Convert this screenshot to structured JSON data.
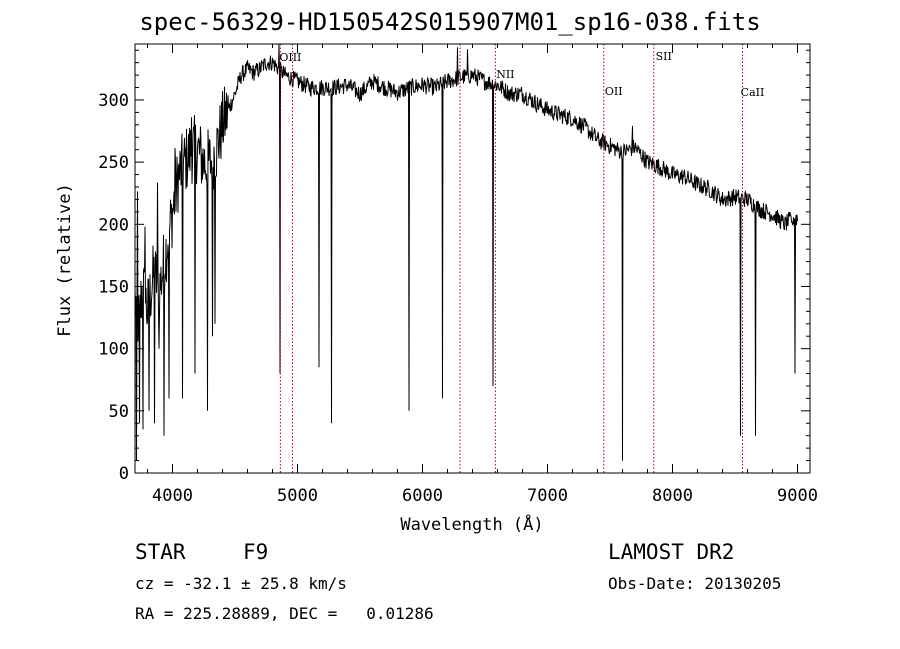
{
  "chart_data": {
    "type": "line",
    "title": "spec-56329-HD150542S015907M01_sp16-038.fits",
    "xlabel": "Wavelength (Å)",
    "ylabel": "Flux (relative)",
    "xlim": [
      3700,
      9100
    ],
    "ylim": [
      0,
      345
    ],
    "x_ticks": [
      4000,
      5000,
      6000,
      7000,
      8000,
      9000
    ],
    "x_tick_labels": [
      "4000",
      "5000",
      "6000",
      "7000",
      "8000",
      "9000"
    ],
    "y_ticks": [
      0,
      50,
      100,
      150,
      200,
      250,
      300
    ],
    "y_tick_labels": [
      "0",
      "50",
      "100",
      "150",
      "200",
      "250",
      "300"
    ],
    "grid": false,
    "series_color": "#000000",
    "line_marker_color": "#b00000",
    "line_markers": [
      {
        "label": "OIII",
        "x": 4863
      },
      {
        "label": "",
        "x": 4960
      },
      {
        "label": "",
        "x": 6300
      },
      {
        "label": "NII",
        "x": 6583
      },
      {
        "label": "OII",
        "x": 7450
      },
      {
        "label": "SII",
        "x": 7850
      },
      {
        "label": "CaII",
        "x": 8560
      }
    ],
    "spectrum": {
      "anchors": [
        [
          3700,
          140
        ],
        [
          3730,
          120
        ],
        [
          3760,
          150
        ],
        [
          3800,
          130
        ],
        [
          3850,
          160
        ],
        [
          3900,
          150
        ],
        [
          3950,
          180
        ],
        [
          4000,
          210
        ],
        [
          4050,
          240
        ],
        [
          4100,
          250
        ],
        [
          4150,
          260
        ],
        [
          4200,
          260
        ],
        [
          4250,
          250
        ],
        [
          4300,
          250
        ],
        [
          4350,
          260
        ],
        [
          4400,
          280
        ],
        [
          4500,
          305
        ],
        [
          4550,
          320
        ],
        [
          4600,
          325
        ],
        [
          4650,
          322
        ],
        [
          4700,
          325
        ],
        [
          4750,
          330
        ],
        [
          4800,
          330
        ],
        [
          4850,
          325
        ],
        [
          4900,
          320
        ],
        [
          5000,
          315
        ],
        [
          5100,
          310
        ],
        [
          5200,
          310
        ],
        [
          5300,
          310
        ],
        [
          5400,
          312
        ],
        [
          5500,
          305
        ],
        [
          5600,
          315
        ],
        [
          5700,
          310
        ],
        [
          5800,
          306
        ],
        [
          5900,
          310
        ],
        [
          6000,
          312
        ],
        [
          6100,
          310
        ],
        [
          6200,
          315
        ],
        [
          6300,
          318
        ],
        [
          6400,
          320
        ],
        [
          6500,
          315
        ],
        [
          6600,
          312
        ],
        [
          6700,
          305
        ],
        [
          6800,
          305
        ],
        [
          6900,
          298
        ],
        [
          7000,
          292
        ],
        [
          7100,
          288
        ],
        [
          7200,
          285
        ],
        [
          7300,
          278
        ],
        [
          7400,
          268
        ],
        [
          7500,
          263
        ],
        [
          7600,
          258
        ],
        [
          7700,
          262
        ],
        [
          7800,
          250
        ],
        [
          7900,
          246
        ],
        [
          8000,
          240
        ],
        [
          8100,
          238
        ],
        [
          8200,
          232
        ],
        [
          8300,
          228
        ],
        [
          8400,
          220
        ],
        [
          8500,
          222
        ],
        [
          8600,
          220
        ],
        [
          8700,
          212
        ],
        [
          8800,
          208
        ],
        [
          8900,
          200
        ],
        [
          8960,
          205
        ]
      ],
      "dips": [
        [
          3710,
          10
        ],
        [
          3735,
          40
        ],
        [
          3765,
          35
        ],
        [
          3810,
          50
        ],
        [
          3855,
          40
        ],
        [
          3890,
          100
        ],
        [
          3930,
          30
        ],
        [
          3970,
          60
        ],
        [
          4080,
          60
        ],
        [
          4180,
          80
        ],
        [
          4280,
          50
        ],
        [
          4320,
          110
        ],
        [
          4340,
          120
        ],
        [
          4860,
          80
        ],
        [
          5170,
          85
        ],
        [
          5270,
          40
        ],
        [
          5890,
          50
        ],
        [
          6160,
          60
        ],
        [
          6563,
          70
        ],
        [
          7600,
          10
        ],
        [
          8542,
          30
        ],
        [
          8662,
          30
        ],
        [
          8960,
          200
        ],
        [
          8980,
          80
        ]
      ],
      "spikes": [
        [
          3720,
          90
        ],
        [
          3780,
          80
        ],
        [
          3880,
          60
        ],
        [
          4020,
          40
        ],
        [
          4150,
          30
        ],
        [
          4850,
          20
        ],
        [
          6280,
          20
        ],
        [
          6360,
          15
        ],
        [
          7680,
          20
        ]
      ],
      "noise_amplitude_blue": 28,
      "noise_amplitude_red": 7,
      "blue_noise_end": 4450
    }
  },
  "info": {
    "class": "STAR",
    "subclass": "F9",
    "survey": "LAMOST DR2",
    "redshift": "cz = -32.1 ± 25.8 km/s",
    "obs_date": "Obs-Date: 20130205",
    "coords": "RA = 225.28889, DEC =   0.01286"
  }
}
